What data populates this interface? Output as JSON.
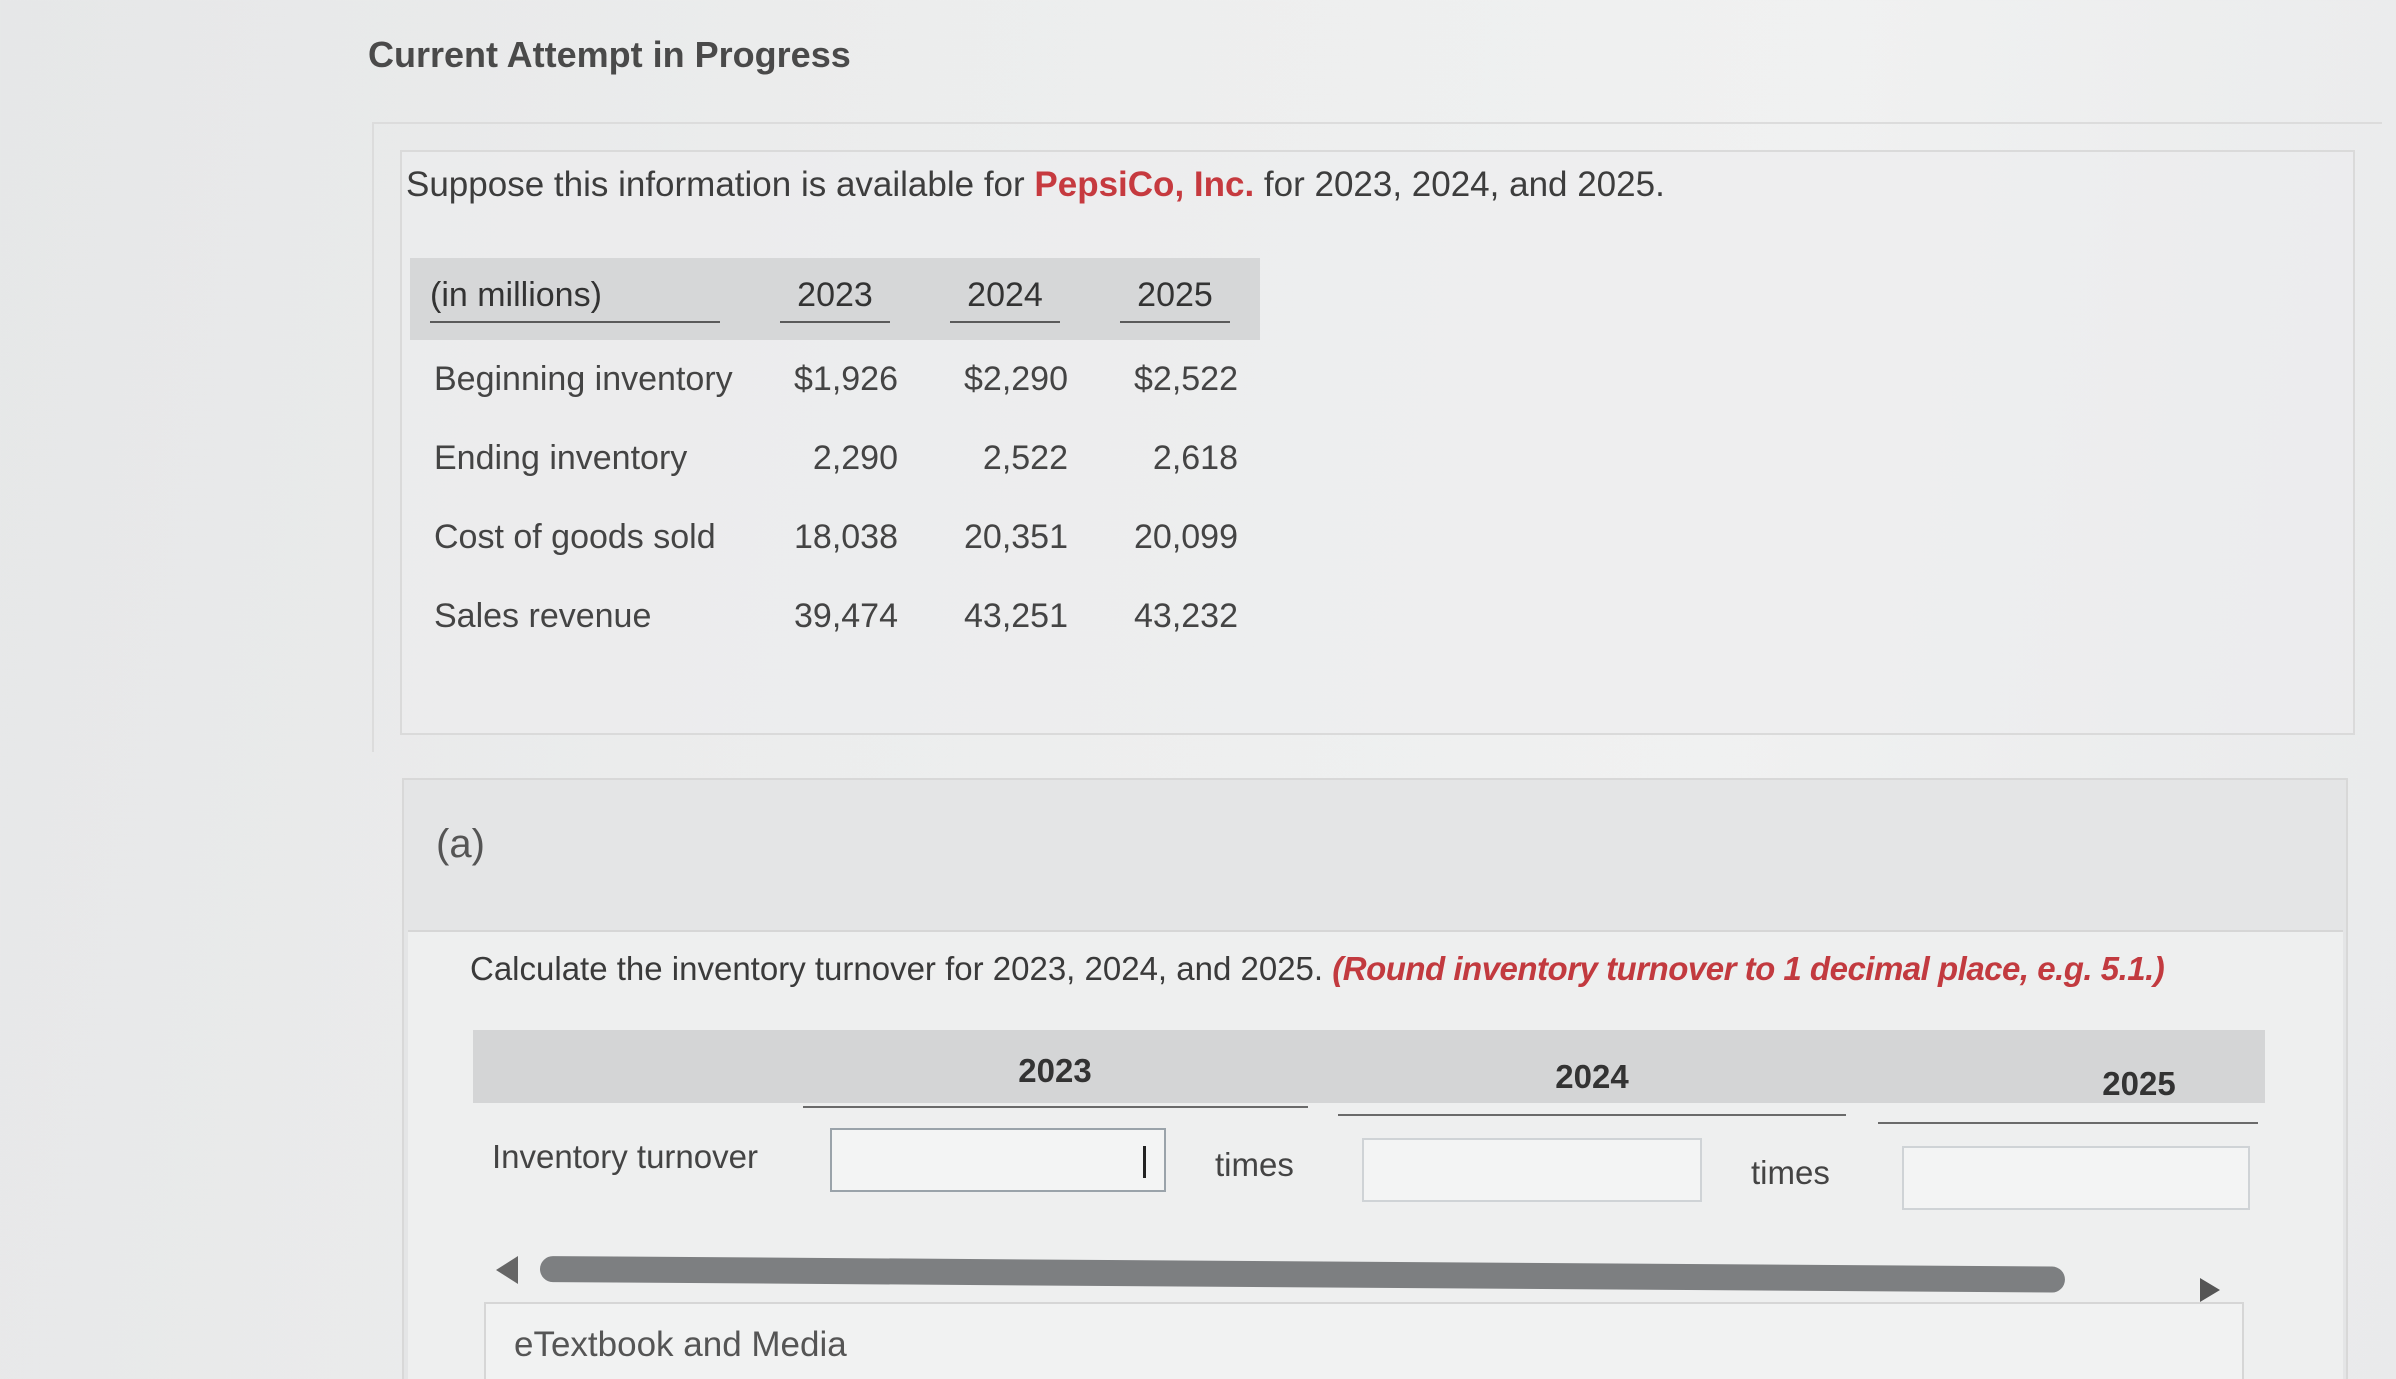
{
  "header": {
    "title": "Current Attempt in Progress"
  },
  "intro": {
    "prefix": "Suppose this information is available for ",
    "company": "PepsiCo, Inc.",
    "suffix": " for 2023, 2024, and 2025."
  },
  "data_table": {
    "unit_label": "(in millions)",
    "years": [
      "2023",
      "2024",
      "2025"
    ],
    "rows": [
      {
        "label": "Beginning inventory",
        "values": [
          "$1,926",
          "$2,290",
          "$2,522"
        ]
      },
      {
        "label": "Ending inventory",
        "values": [
          "2,290",
          "2,522",
          "2,618"
        ]
      },
      {
        "label": "Cost of goods sold",
        "values": [
          "18,038",
          "20,351",
          "20,099"
        ]
      },
      {
        "label": "Sales revenue",
        "values": [
          "39,474",
          "43,251",
          "43,232"
        ]
      }
    ]
  },
  "part": {
    "label": "(a)",
    "question": "Calculate the inventory turnover for 2023, 2024, and 2025. ",
    "hint": "(Round inventory turnover to 1 decimal place, e.g. 5.1.)",
    "answer_grid": {
      "years": [
        "2023",
        "2024",
        "2025"
      ],
      "row_label": "Inventory turnover",
      "unit": "times",
      "inputs": [
        {
          "value": "",
          "focused": true
        },
        {
          "value": "",
          "focused": false
        },
        {
          "value": "",
          "focused": false
        }
      ]
    }
  },
  "resources": {
    "etextbook_label": "eTextbook and Media"
  },
  "icons": {
    "scroll_left": "triangle-left-icon",
    "scroll_right": "triangle-right-icon"
  },
  "colors": {
    "accent_red": "#c63a3f"
  }
}
